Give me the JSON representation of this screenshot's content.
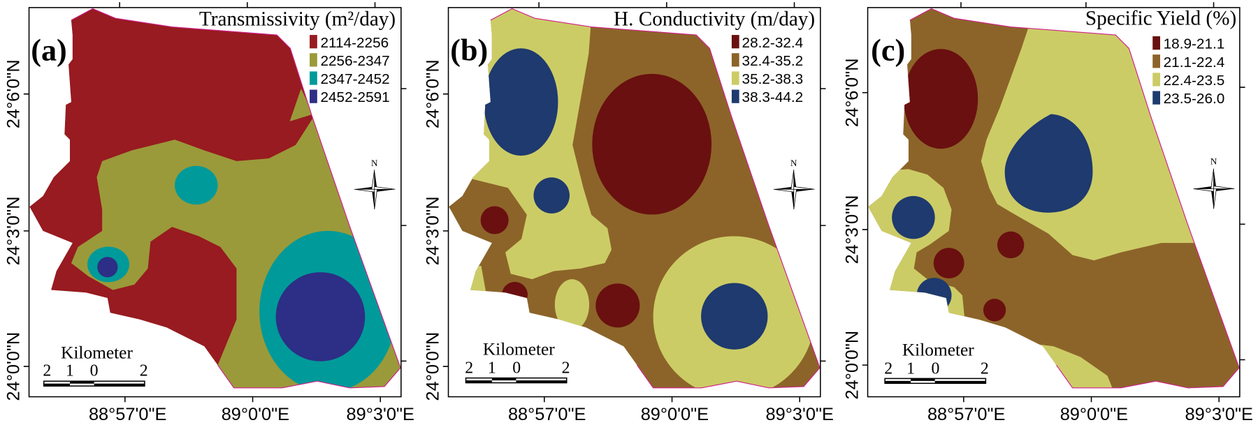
{
  "axes": {
    "lat_labels": [
      "24°6'0\"N",
      "24°3'0\"N",
      "24°0'0\"N"
    ],
    "lon_labels": [
      "88°57'0\"E",
      "89°0'0\"E",
      "89°3'0\"E"
    ]
  },
  "scale_bar": {
    "title": "Kilometer",
    "ticks": [
      "2",
      "1",
      "0",
      "2"
    ]
  },
  "north_label": "N",
  "panels": [
    {
      "label": "(a)",
      "title": "Transmissivity (m²/day)",
      "legend": [
        {
          "range": "2114-2256",
          "color": "#971b20"
        },
        {
          "range": "2256-2347",
          "color": "#9a9a3a"
        },
        {
          "range": "2347-2452",
          "color": "#009a9a"
        },
        {
          "range": "2452-2591",
          "color": "#2d2e85"
        }
      ]
    },
    {
      "label": "(b)",
      "title": "H. Conductivity (m/day)",
      "legend": [
        {
          "range": "28.2-32.4",
          "color": "#6a1010"
        },
        {
          "range": "32.4-35.2",
          "color": "#8c6429"
        },
        {
          "range": "35.2-38.3",
          "color": "#cccc66"
        },
        {
          "range": "38.3-44.2",
          "color": "#1e3a6e"
        }
      ]
    },
    {
      "label": "(c)",
      "title": "Specific Yield (%)",
      "legend": [
        {
          "range": "18.9-21.1",
          "color": "#6a1010"
        },
        {
          "range": "21.1-22.4",
          "color": "#8c6429"
        },
        {
          "range": "22.4-23.5",
          "color": "#cccc66"
        },
        {
          "range": "23.5-26.0",
          "color": "#1e3a6e"
        }
      ]
    }
  ]
}
